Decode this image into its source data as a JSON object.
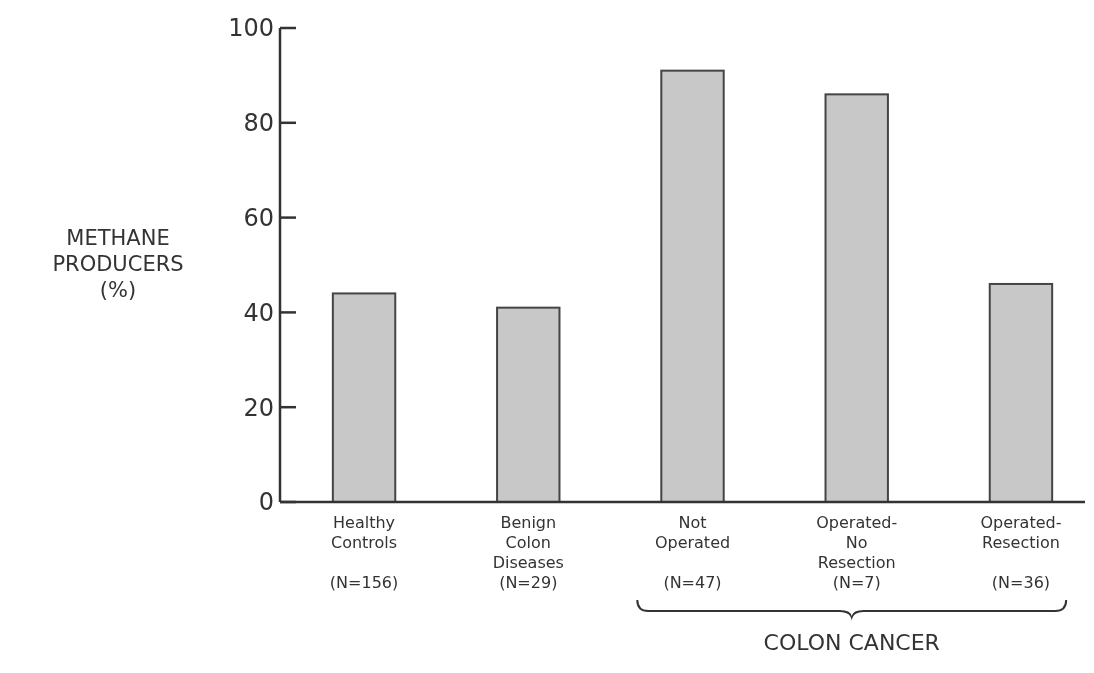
{
  "chart_data": {
    "type": "bar",
    "ylabel": "METHANE\nPRODUCERS\n(%)",
    "categories": [
      "Healthy\nControls\n(N=156)",
      "Benign\nColon\nDiseases\n(N=29)",
      "Not\nOperated\n(N=47)",
      "Operated-\nNo\nResection\n(N=7)",
      "Operated-\nResection\n(N=36)"
    ],
    "values": [
      44,
      41,
      91,
      86,
      46
    ],
    "color": "#c8c8c8",
    "ylim": [
      0,
      100
    ],
    "yticks": [
      0,
      20,
      40,
      60,
      80,
      100
    ],
    "grid": false,
    "annotations": [
      "COLON CANCER"
    ]
  }
}
